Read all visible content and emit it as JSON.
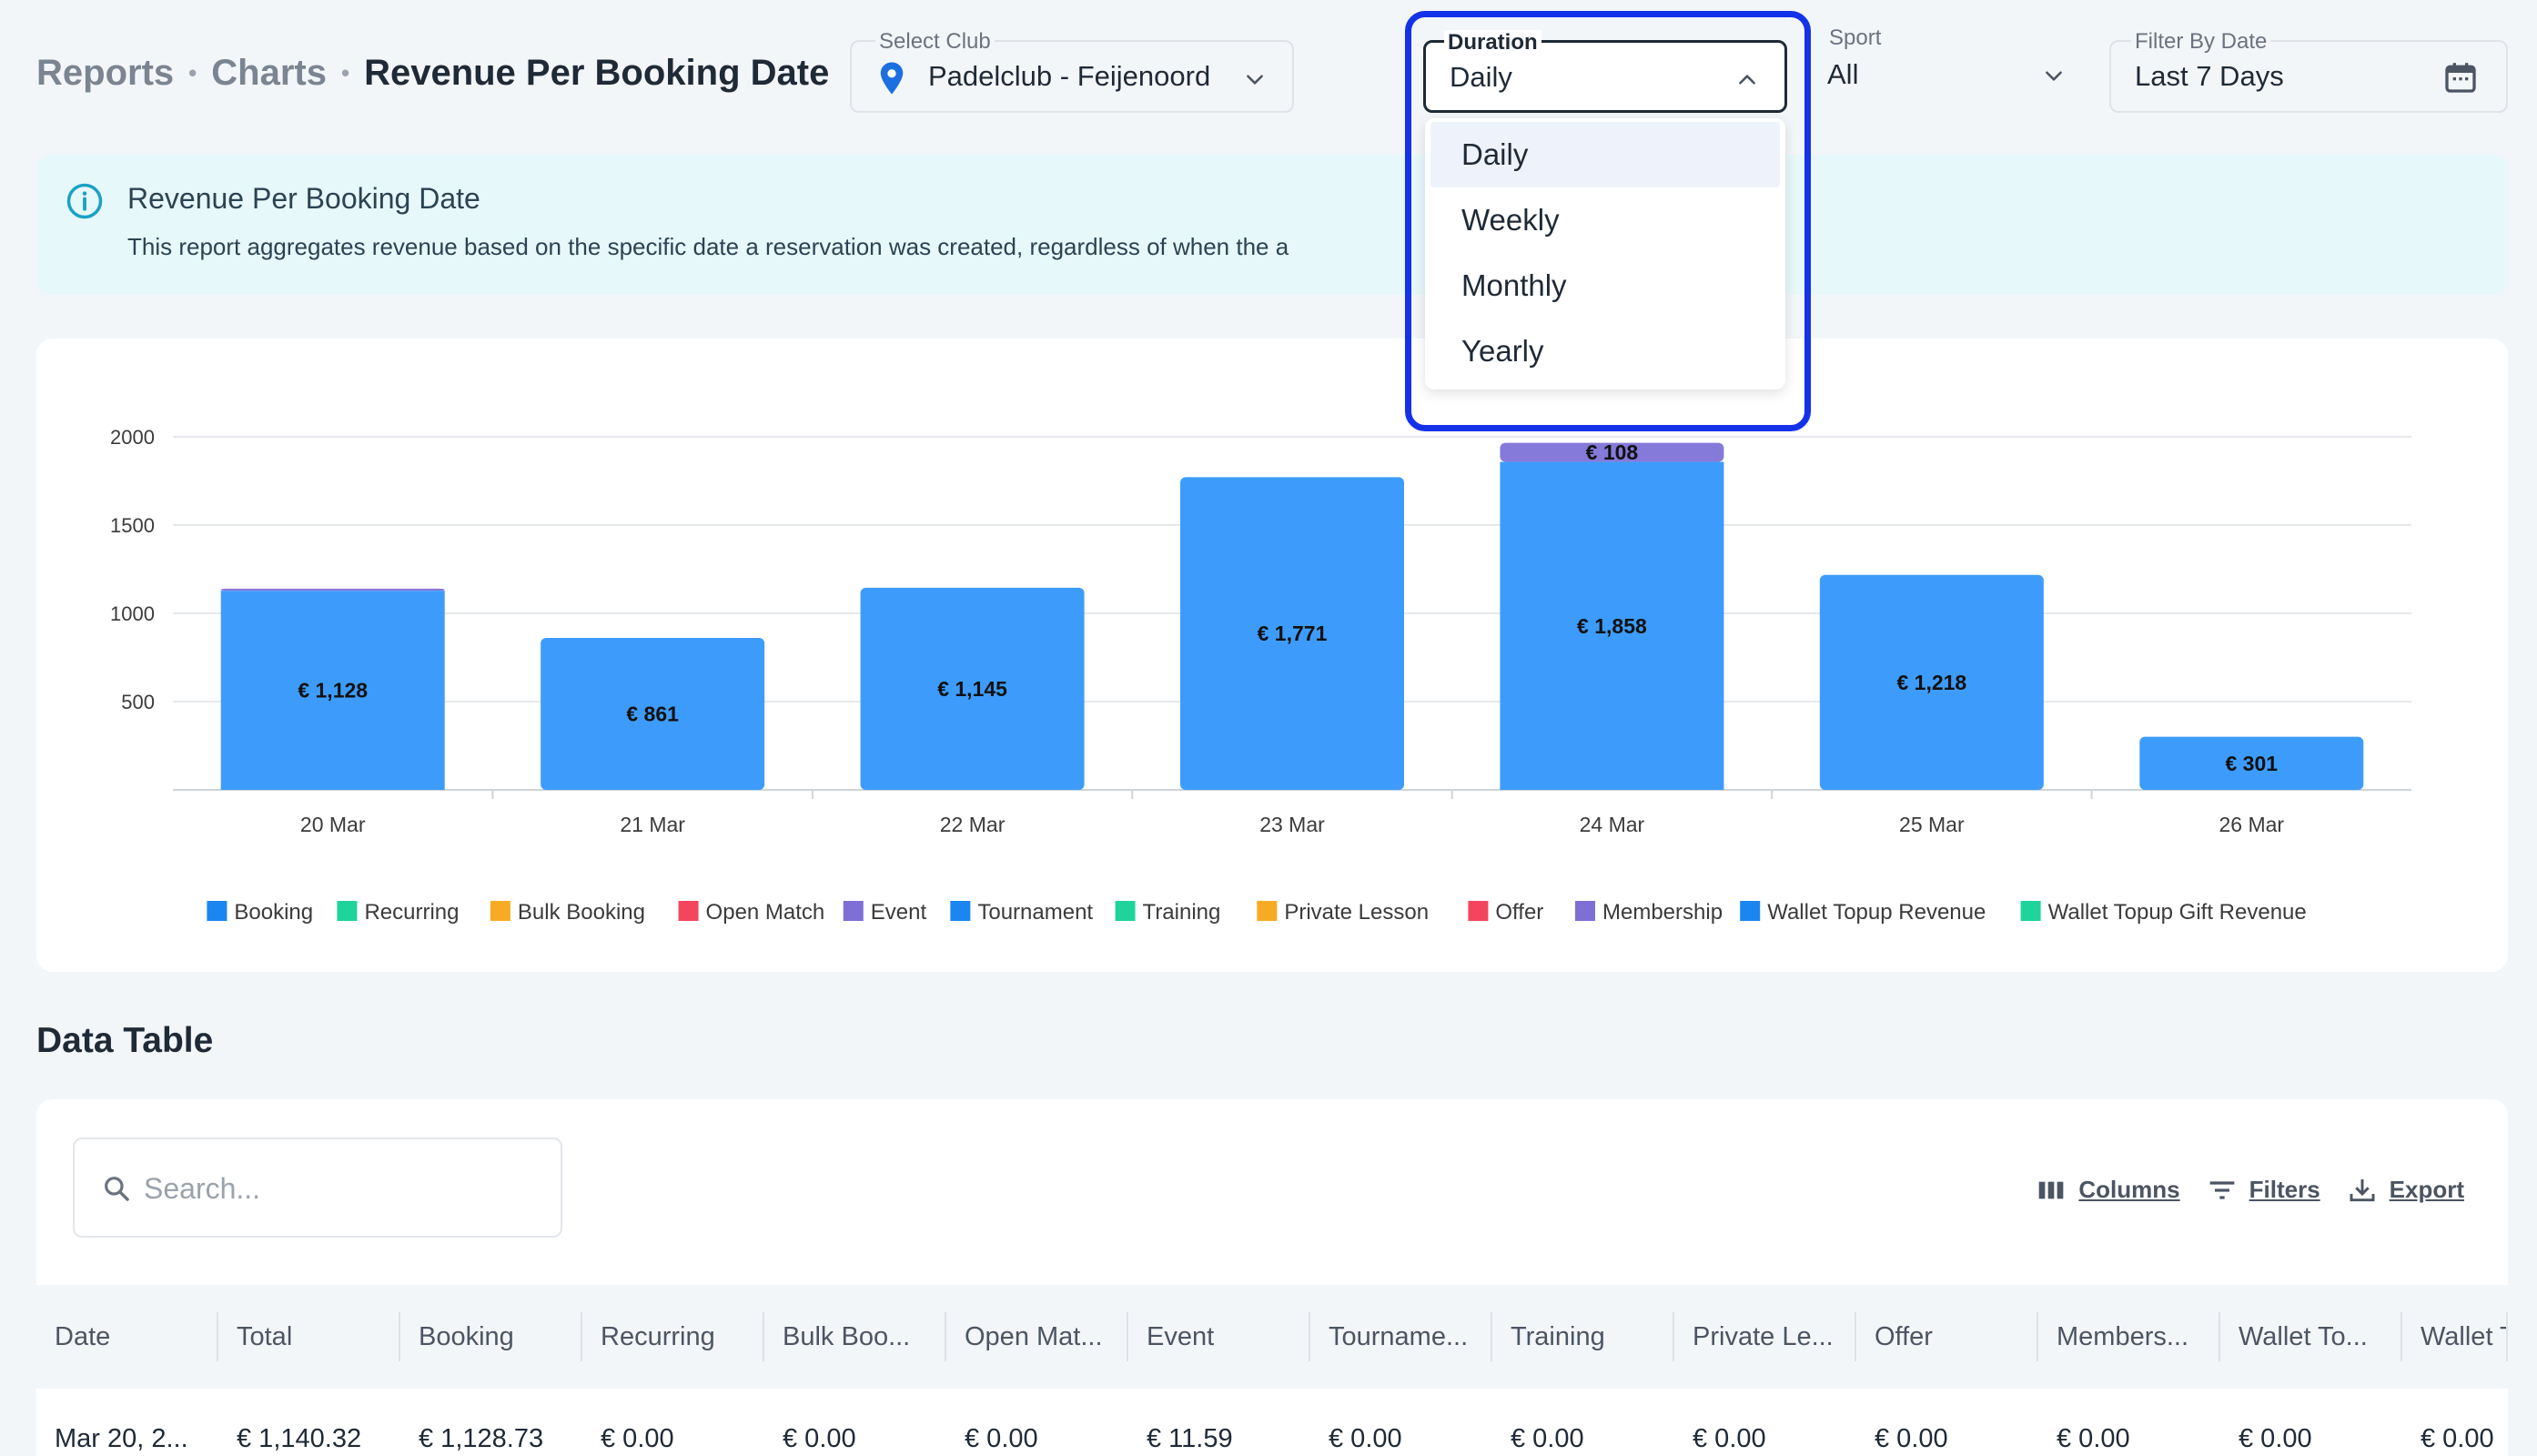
{
  "breadcrumb": {
    "items": [
      "Reports",
      "Charts"
    ],
    "current": "Revenue Per Booking Date",
    "separator": "•"
  },
  "filters": {
    "club": {
      "label": "Select Club",
      "value": "Padelclub - Feijenoord"
    },
    "duration": {
      "label": "Duration",
      "value": "Daily",
      "options": [
        "Daily",
        "Weekly",
        "Monthly",
        "Yearly"
      ],
      "expanded": true
    },
    "sport": {
      "label": "Sport",
      "value": "All"
    },
    "date": {
      "label": "Filter By Date",
      "value": "Last 7 Days"
    }
  },
  "info": {
    "title": "Revenue Per Booking Date",
    "description": "This report aggregates revenue based on the specific date a reservation was created, regardless of when the a"
  },
  "chart_data": {
    "type": "bar",
    "stacked": true,
    "categories": [
      "20 Mar",
      "21 Mar",
      "22 Mar",
      "23 Mar",
      "24 Mar",
      "25 Mar",
      "26 Mar"
    ],
    "ylim": [
      0,
      2000
    ],
    "yticks": [
      "500",
      "1000",
      "1500",
      "2000"
    ],
    "grid": true,
    "legend_position": "bottom",
    "series": [
      {
        "name": "Booking",
        "color": "#3d9cfb",
        "values": [
          1128,
          861,
          1145,
          1771,
          1858,
          1218,
          301
        ],
        "labels": [
          "€ 1,128",
          "€ 861",
          "€ 1,145",
          "€ 1,771",
          "€ 1,858",
          "€ 1,218",
          "€ 301"
        ]
      },
      {
        "name": "Event",
        "color": "#8579da",
        "values": [
          12,
          0,
          0,
          0,
          108,
          0,
          0
        ],
        "labels": [
          "",
          "",
          "",
          "",
          "€ 108",
          "",
          ""
        ]
      }
    ],
    "legend": [
      {
        "name": "Booking",
        "color": "#1b86f0"
      },
      {
        "name": "Recurring",
        "color": "#1fd49a"
      },
      {
        "name": "Bulk Booking",
        "color": "#f7ab25"
      },
      {
        "name": "Open Match",
        "color": "#f4455f"
      },
      {
        "name": "Event",
        "color": "#7e6fd6"
      },
      {
        "name": "Tournament",
        "color": "#1b86f0"
      },
      {
        "name": "Training",
        "color": "#1fd49a"
      },
      {
        "name": "Private Lesson",
        "color": "#f7ab25"
      },
      {
        "name": "Offer",
        "color": "#f4455f"
      },
      {
        "name": "Membership",
        "color": "#7e6fd6"
      },
      {
        "name": "Wallet Topup Revenue",
        "color": "#1b86f0"
      },
      {
        "name": "Wallet Topup Gift Revenue",
        "color": "#1fd49a"
      }
    ]
  },
  "table": {
    "section_title": "Data Table",
    "search_placeholder": "Search...",
    "tools": {
      "columns": "Columns",
      "filters": "Filters",
      "export": "Export"
    },
    "headers": [
      "Date",
      "Total",
      "Booking",
      "Recurring",
      "Bulk Boo...",
      "Open Mat...",
      "Event",
      "Tourname...",
      "Training",
      "Private Le...",
      "Offer",
      "Members...",
      "Wallet To...",
      "Wallet T"
    ],
    "rows": [
      [
        "Mar 20, 2...",
        "€ 1,140.32",
        "€ 1,128.73",
        "€ 0.00",
        "€ 0.00",
        "€ 0.00",
        "€ 11.59",
        "€ 0.00",
        "€ 0.00",
        "€ 0.00",
        "€ 0.00",
        "€ 0.00",
        "€ 0.00",
        "€ 0.00"
      ]
    ]
  }
}
